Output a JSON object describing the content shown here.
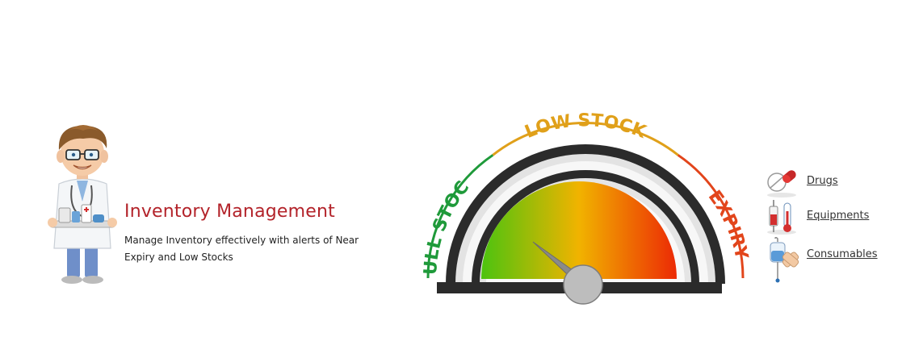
{
  "feature": {
    "title": "Inventory Management",
    "description": "Manage Inventory effectively with alerts of Near Expiry and Low Stocks"
  },
  "gauge": {
    "labels": {
      "full_stock": "FULL STOCK",
      "low_stock": "LOW STOCK",
      "expiry": "EXPIRY"
    },
    "colors": {
      "full_stock": "#1f9a3a",
      "low_stock": "#e0a01a",
      "expiry": "#e2451b"
    }
  },
  "categories": [
    {
      "label": "Drugs",
      "icon": "pill-icon"
    },
    {
      "label": "Equipments",
      "icon": "syringe-thermometer-icon"
    },
    {
      "label": "Consumables",
      "icon": "iv-drip-icon"
    }
  ]
}
